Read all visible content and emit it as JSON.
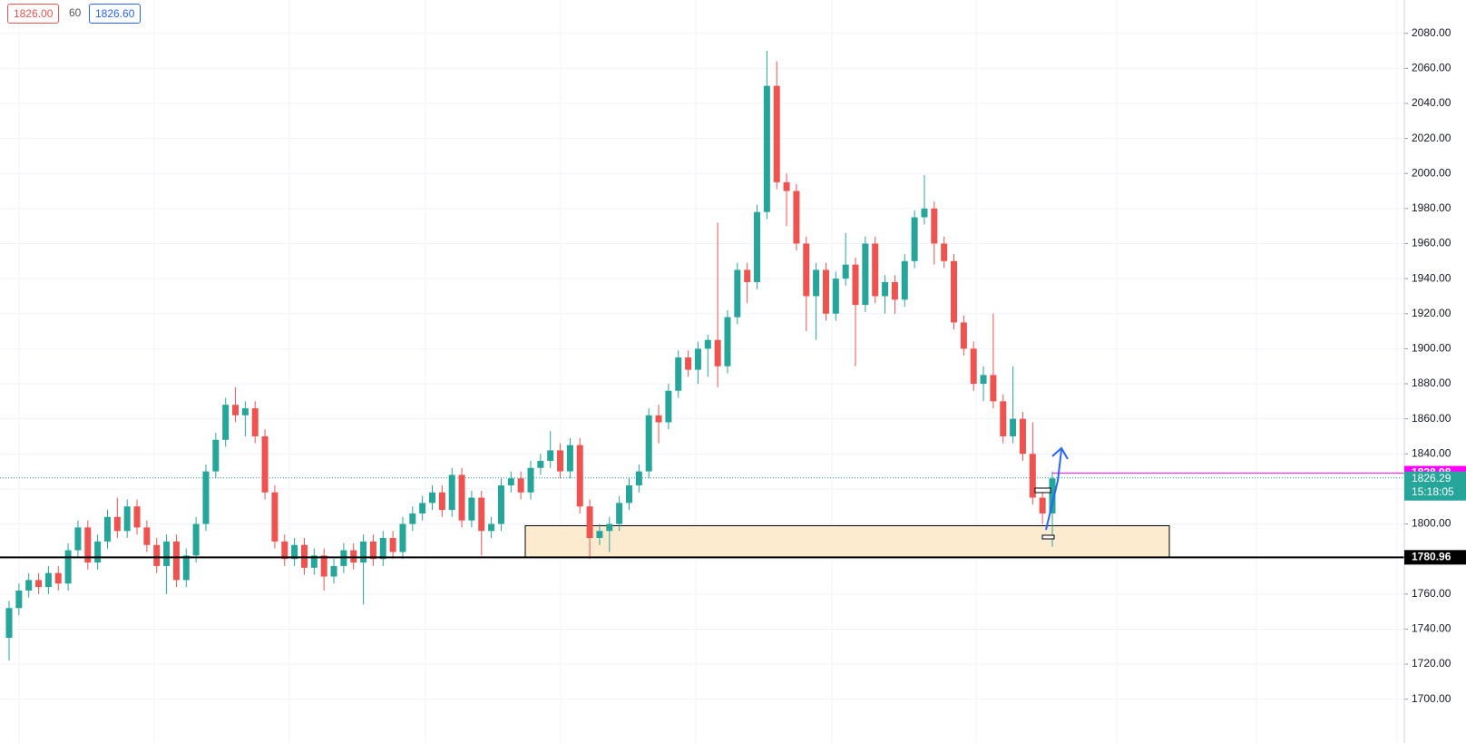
{
  "toolbar": {
    "sell": "1826.00",
    "spread": "60",
    "buy": "1826.60"
  },
  "chart_data": {
    "type": "candlestick",
    "up_color": "#26a69a",
    "down_color": "#ef5350",
    "open": [
      1735,
      1752,
      1762,
      1768,
      1764,
      1772,
      1766,
      1785,
      1798,
      1778,
      1790,
      1804,
      1796,
      1810,
      1798,
      1788,
      1776,
      1790,
      1768,
      1782,
      1800,
      1830,
      1848,
      1868,
      1862,
      1866,
      1850,
      1818,
      1790,
      1780,
      1788,
      1775,
      1782,
      1770,
      1776,
      1785,
      1778,
      1790,
      1780,
      1792,
      1784,
      1800,
      1806,
      1812,
      1818,
      1808,
      1828,
      1802,
      1815,
      1796,
      1800,
      1822,
      1826,
      1818,
      1832,
      1836,
      1842,
      1830,
      1845,
      1810,
      1792,
      1796,
      1800,
      1812,
      1822,
      1830,
      1862,
      1858,
      1876,
      1895,
      1888,
      1900,
      1905,
      1890,
      1918,
      1945,
      1938,
      1978,
      2050,
      1995,
      1990,
      1960,
      1930,
      1945,
      1920,
      1940,
      1948,
      1925,
      1960,
      1930,
      1938,
      1928,
      1950,
      1975,
      1980,
      1960,
      1950,
      1915,
      1900,
      1880,
      1885,
      1870,
      1850,
      1860,
      1840,
      1815,
      1806
    ],
    "high": [
      1756,
      1766,
      1772,
      1772,
      1776,
      1776,
      1789,
      1802,
      1802,
      1794,
      1808,
      1815,
      1814,
      1814,
      1802,
      1792,
      1794,
      1794,
      1786,
      1804,
      1834,
      1852,
      1872,
      1878,
      1870,
      1870,
      1854,
      1822,
      1794,
      1792,
      1792,
      1786,
      1786,
      1780,
      1789,
      1789,
      1794,
      1794,
      1796,
      1796,
      1804,
      1810,
      1816,
      1822,
      1822,
      1832,
      1832,
      1819,
      1819,
      1804,
      1826,
      1830,
      1830,
      1836,
      1840,
      1853,
      1846,
      1849,
      1849,
      1814,
      1800,
      1804,
      1816,
      1826,
      1834,
      1866,
      1868,
      1880,
      1899,
      1899,
      1904,
      1908,
      1972,
      1922,
      1949,
      1949,
      1982,
      2070,
      2064,
      2000,
      1994,
      1964,
      1949,
      1949,
      1944,
      1966,
      1952,
      1964,
      1964,
      1942,
      1942,
      1954,
      1979,
      1999,
      1984,
      1964,
      1954,
      1919,
      1904,
      1890,
      1920,
      1874,
      1890,
      1864,
      1858,
      1819,
      1830
    ],
    "low": [
      1722,
      1748,
      1758,
      1760,
      1760,
      1762,
      1762,
      1781,
      1774,
      1774,
      1786,
      1792,
      1792,
      1794,
      1784,
      1772,
      1760,
      1764,
      1764,
      1778,
      1796,
      1826,
      1844,
      1858,
      1850,
      1846,
      1814,
      1786,
      1776,
      1776,
      1771,
      1771,
      1762,
      1766,
      1772,
      1774,
      1754,
      1776,
      1776,
      1780,
      1780,
      1796,
      1802,
      1808,
      1804,
      1804,
      1798,
      1798,
      1782,
      1792,
      1796,
      1818,
      1814,
      1814,
      1828,
      1832,
      1826,
      1826,
      1806,
      1780,
      1788,
      1784,
      1796,
      1808,
      1818,
      1826,
      1846,
      1854,
      1872,
      1884,
      1880,
      1884,
      1878,
      1886,
      1914,
      1926,
      1934,
      1974,
      1991,
      1970,
      1956,
      1910,
      1905,
      1916,
      1916,
      1936,
      1890,
      1921,
      1926,
      1920,
      1920,
      1924,
      1946,
      1971,
      1948,
      1946,
      1911,
      1896,
      1876,
      1870,
      1866,
      1846,
      1846,
      1836,
      1811,
      1800,
      1787
    ],
    "close": [
      1752,
      1762,
      1768,
      1764,
      1772,
      1766,
      1785,
      1798,
      1778,
      1790,
      1804,
      1796,
      1810,
      1798,
      1788,
      1776,
      1790,
      1768,
      1782,
      1800,
      1830,
      1848,
      1868,
      1862,
      1866,
      1850,
      1818,
      1790,
      1780,
      1788,
      1775,
      1782,
      1770,
      1776,
      1785,
      1778,
      1790,
      1780,
      1792,
      1784,
      1800,
      1806,
      1812,
      1818,
      1808,
      1828,
      1802,
      1815,
      1796,
      1800,
      1822,
      1826,
      1818,
      1832,
      1836,
      1842,
      1830,
      1845,
      1810,
      1792,
      1796,
      1800,
      1812,
      1822,
      1830,
      1862,
      1858,
      1876,
      1895,
      1888,
      1900,
      1905,
      1890,
      1918,
      1945,
      1938,
      1978,
      2050,
      1995,
      1990,
      1960,
      1930,
      1945,
      1920,
      1940,
      1948,
      1925,
      1960,
      1930,
      1938,
      1928,
      1950,
      1975,
      1980,
      1960,
      1950,
      1915,
      1900,
      1880,
      1885,
      1870,
      1850,
      1860,
      1840,
      1815,
      1806,
      1826
    ],
    "ylim": [
      1675,
      2099
    ],
    "yticks": [
      {
        "value": 1700,
        "label": "1700.00"
      },
      {
        "value": 1720,
        "label": "1720.00"
      },
      {
        "value": 1740,
        "label": "1740.00"
      },
      {
        "value": 1760,
        "label": "1760.00"
      },
      {
        "value": 1780,
        "label": "1780.00"
      },
      {
        "value": 1800,
        "label": "1800.00"
      },
      {
        "value": 1820,
        "label": "1820.00"
      },
      {
        "value": 1840,
        "label": "1840.00"
      },
      {
        "value": 1860,
        "label": "1860.00"
      },
      {
        "value": 1880,
        "label": "1880.00"
      },
      {
        "value": 1900,
        "label": "1900.00"
      },
      {
        "value": 1920,
        "label": "1920.00"
      },
      {
        "value": 1940,
        "label": "1940.00"
      },
      {
        "value": 1960,
        "label": "1960.00"
      },
      {
        "value": 1980,
        "label": "1980.00"
      },
      {
        "value": 2000,
        "label": "2000.00"
      },
      {
        "value": 2020,
        "label": "2020.00"
      },
      {
        "value": 2040,
        "label": "2040.00"
      },
      {
        "value": 2060,
        "label": "2060.00"
      },
      {
        "value": 2080,
        "label": "2080.00"
      }
    ],
    "grid": true,
    "zone": {
      "low": 1780.96,
      "high": 1799,
      "color": "#fdebd0"
    },
    "support_line": {
      "value": 1780.96,
      "color": "#000000"
    },
    "alert_line": {
      "value": 1828.98,
      "color": "#ff00ff"
    },
    "last_price": {
      "value": 1826.29,
      "countdown": "15:18:05",
      "color": "#26a69a"
    }
  }
}
